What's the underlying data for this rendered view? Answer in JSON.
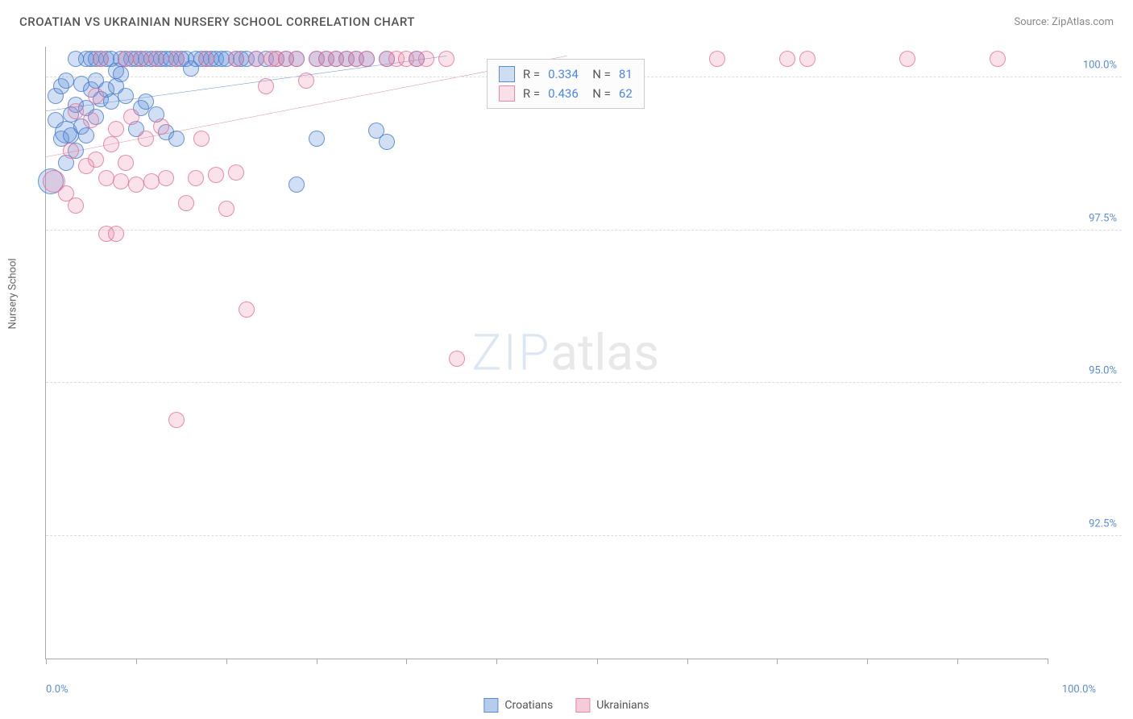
{
  "header": {
    "title": "CROATIAN VS UKRAINIAN NURSERY SCHOOL CORRELATION CHART",
    "source": "Source: ZipAtlas.com"
  },
  "watermark": {
    "part1": "ZIP",
    "part2": "atlas"
  },
  "chart": {
    "type": "scatter",
    "ylabel": "Nursery School",
    "background_color": "#ffffff",
    "grid_color": "#dddddd",
    "axis_color": "#aaaaaa",
    "tick_label_color": "#5b8dd6",
    "label_fontsize": 13,
    "xlim": [
      0,
      100
    ],
    "ylim": [
      90.5,
      100.5
    ],
    "xtick_positions": [
      0,
      9,
      18,
      27,
      36,
      45,
      55,
      64,
      73,
      82,
      91,
      100
    ],
    "xtick_labels_shown": {
      "min": "0.0%",
      "max": "100.0%"
    },
    "ygrid": [
      {
        "v": 100.0,
        "label": "100.0%"
      },
      {
        "v": 97.5,
        "label": "97.5%"
      },
      {
        "v": 95.0,
        "label": "95.0%"
      },
      {
        "v": 92.5,
        "label": "92.5%"
      }
    ],
    "marker": {
      "shape": "circle",
      "base_radius": 10,
      "fill_opacity": 0.28,
      "stroke_opacity": 0.75,
      "stroke_width": 1
    },
    "series": [
      {
        "key": "croatians",
        "label": "Croatians",
        "color": "#5b8dd6",
        "fill": "rgba(91,141,214,0.28)",
        "stroke": "rgba(70,120,200,0.75)",
        "stats": {
          "R": "0.334",
          "N": "81"
        },
        "trend": {
          "x1": 0,
          "y1": 99.45,
          "x2": 40,
          "y2": 100.35,
          "line_width": 2
        },
        "points": [
          [
            0.5,
            98.3,
            16
          ],
          [
            1,
            99.3,
            10
          ],
          [
            1,
            99.7,
            10
          ],
          [
            1.5,
            99.0,
            10
          ],
          [
            1.5,
            99.85,
            10
          ],
          [
            2,
            99.1,
            14
          ],
          [
            2,
            99.95,
            10
          ],
          [
            2,
            98.6,
            10
          ],
          [
            2.5,
            99.4,
            10
          ],
          [
            2.5,
            99.05,
            10
          ],
          [
            3,
            99.55,
            10
          ],
          [
            3,
            100.3,
            10
          ],
          [
            3,
            98.8,
            10
          ],
          [
            3.5,
            99.9,
            10
          ],
          [
            3.5,
            99.2,
            10
          ],
          [
            4,
            100.3,
            10
          ],
          [
            4,
            99.5,
            10
          ],
          [
            4,
            99.05,
            10
          ],
          [
            4.5,
            99.8,
            10
          ],
          [
            4.5,
            100.3,
            10
          ],
          [
            5,
            99.95,
            10
          ],
          [
            5,
            99.35,
            10
          ],
          [
            5,
            100.3,
            10
          ],
          [
            5.5,
            99.65,
            10
          ],
          [
            5.5,
            100.3,
            10
          ],
          [
            6,
            100.3,
            10
          ],
          [
            6,
            99.8,
            10
          ],
          [
            6.5,
            100.3,
            10
          ],
          [
            6.5,
            99.6,
            10
          ],
          [
            7,
            100.1,
            10
          ],
          [
            7,
            99.85,
            10
          ],
          [
            7.5,
            100.3,
            10
          ],
          [
            7.5,
            100.05,
            10
          ],
          [
            8,
            100.3,
            10
          ],
          [
            8,
            99.7,
            10
          ],
          [
            8.5,
            100.3,
            10
          ],
          [
            9,
            100.3,
            10
          ],
          [
            9,
            99.15,
            10
          ],
          [
            9.5,
            100.3,
            10
          ],
          [
            9.5,
            99.5,
            10
          ],
          [
            10,
            100.3,
            10
          ],
          [
            10,
            99.6,
            10
          ],
          [
            10.5,
            100.3,
            10
          ],
          [
            11,
            100.3,
            10
          ],
          [
            11,
            99.4,
            10
          ],
          [
            11.5,
            100.3,
            10
          ],
          [
            12,
            99.1,
            10
          ],
          [
            12,
            100.3,
            10
          ],
          [
            12.5,
            100.3,
            10
          ],
          [
            13,
            99.0,
            10
          ],
          [
            13,
            100.3,
            10
          ],
          [
            13.5,
            100.3,
            10
          ],
          [
            14,
            100.3,
            10
          ],
          [
            14.5,
            100.15,
            10
          ],
          [
            15,
            100.3,
            10
          ],
          [
            15.5,
            100.3,
            10
          ],
          [
            16,
            100.3,
            10
          ],
          [
            16.5,
            100.3,
            10
          ],
          [
            17,
            100.3,
            10
          ],
          [
            17.5,
            100.3,
            10
          ],
          [
            18,
            100.3,
            10
          ],
          [
            19,
            100.3,
            10
          ],
          [
            19.5,
            100.3,
            10
          ],
          [
            20,
            100.3,
            10
          ],
          [
            21,
            100.3,
            10
          ],
          [
            22,
            100.3,
            10
          ],
          [
            23,
            100.3,
            10
          ],
          [
            24,
            100.3,
            10
          ],
          [
            25,
            100.3,
            10
          ],
          [
            25,
            98.25,
            10
          ],
          [
            27,
            99.0,
            10
          ],
          [
            27,
            100.3,
            10
          ],
          [
            28,
            100.3,
            10
          ],
          [
            29,
            100.3,
            10
          ],
          [
            30,
            100.3,
            10
          ],
          [
            31,
            100.3,
            10
          ],
          [
            32,
            100.3,
            10
          ],
          [
            33,
            99.13,
            10
          ],
          [
            34,
            100.3,
            10
          ],
          [
            34,
            98.95,
            10
          ],
          [
            37,
            100.3,
            10
          ]
        ]
      },
      {
        "key": "ukrainians",
        "label": "Ukrainians",
        "color": "#e68aa6",
        "fill": "rgba(235,140,170,0.25)",
        "stroke": "rgba(225,110,150,0.75)",
        "stats": {
          "R": "0.436",
          "N": "62"
        },
        "trend": {
          "x1": 0,
          "y1": 98.7,
          "x2": 52,
          "y2": 100.35,
          "line_width": 2
        },
        "points": [
          [
            0.8,
            98.3,
            14
          ],
          [
            2,
            98.1,
            10
          ],
          [
            2.5,
            98.8,
            10
          ],
          [
            3,
            99.45,
            10
          ],
          [
            3,
            97.9,
            10
          ],
          [
            4,
            98.55,
            10
          ],
          [
            4.5,
            99.3,
            10
          ],
          [
            5,
            98.65,
            10
          ],
          [
            5,
            99.7,
            10
          ],
          [
            5.5,
            100.3,
            10
          ],
          [
            6,
            98.35,
            10
          ],
          [
            6,
            97.45,
            10
          ],
          [
            6.5,
            98.9,
            10
          ],
          [
            7,
            99.15,
            10
          ],
          [
            7,
            97.45,
            10
          ],
          [
            7.5,
            98.3,
            10
          ],
          [
            8,
            100.3,
            10
          ],
          [
            8,
            98.6,
            10
          ],
          [
            8.5,
            99.35,
            10
          ],
          [
            9,
            98.25,
            10
          ],
          [
            9.5,
            100.3,
            10
          ],
          [
            10,
            99.0,
            10
          ],
          [
            10.5,
            98.3,
            10
          ],
          [
            11,
            100.3,
            10
          ],
          [
            11.5,
            99.2,
            10
          ],
          [
            12,
            98.35,
            10
          ],
          [
            13,
            100.3,
            10
          ],
          [
            13,
            94.4,
            10
          ],
          [
            14,
            97.95,
            10
          ],
          [
            15,
            98.35,
            10
          ],
          [
            15.5,
            99.0,
            10
          ],
          [
            16,
            100.3,
            10
          ],
          [
            17,
            98.4,
            10
          ],
          [
            18,
            97.85,
            10
          ],
          [
            19,
            100.3,
            10
          ],
          [
            19,
            98.45,
            10
          ],
          [
            20,
            96.2,
            10
          ],
          [
            21,
            100.3,
            10
          ],
          [
            22,
            99.85,
            10
          ],
          [
            22.5,
            100.3,
            10
          ],
          [
            23,
            100.3,
            10
          ],
          [
            24,
            100.3,
            10
          ],
          [
            25,
            100.3,
            10
          ],
          [
            26,
            99.95,
            10
          ],
          [
            27,
            100.3,
            10
          ],
          [
            28,
            100.3,
            10
          ],
          [
            29,
            100.3,
            10
          ],
          [
            30,
            100.3,
            10
          ],
          [
            31,
            100.3,
            10
          ],
          [
            32,
            100.3,
            10
          ],
          [
            34,
            100.3,
            10
          ],
          [
            35,
            100.3,
            10
          ],
          [
            36,
            100.3,
            10
          ],
          [
            37,
            100.3,
            10
          ],
          [
            38,
            100.3,
            10
          ],
          [
            40,
            100.3,
            10
          ],
          [
            41,
            95.4,
            10
          ],
          [
            67,
            100.3,
            10
          ],
          [
            76,
            100.3,
            10
          ],
          [
            86,
            100.3,
            10
          ],
          [
            95,
            100.3,
            10
          ],
          [
            74,
            100.3,
            10
          ]
        ]
      }
    ],
    "stats_box": {
      "left_pct": 44,
      "top_pct": 2
    },
    "legend": [
      {
        "label": "Croatians",
        "fill": "rgba(91,141,214,0.45)",
        "stroke": "#5b8dd6"
      },
      {
        "label": "Ukrainians",
        "fill": "rgba(235,140,170,0.45)",
        "stroke": "#e68aa6"
      }
    ]
  }
}
